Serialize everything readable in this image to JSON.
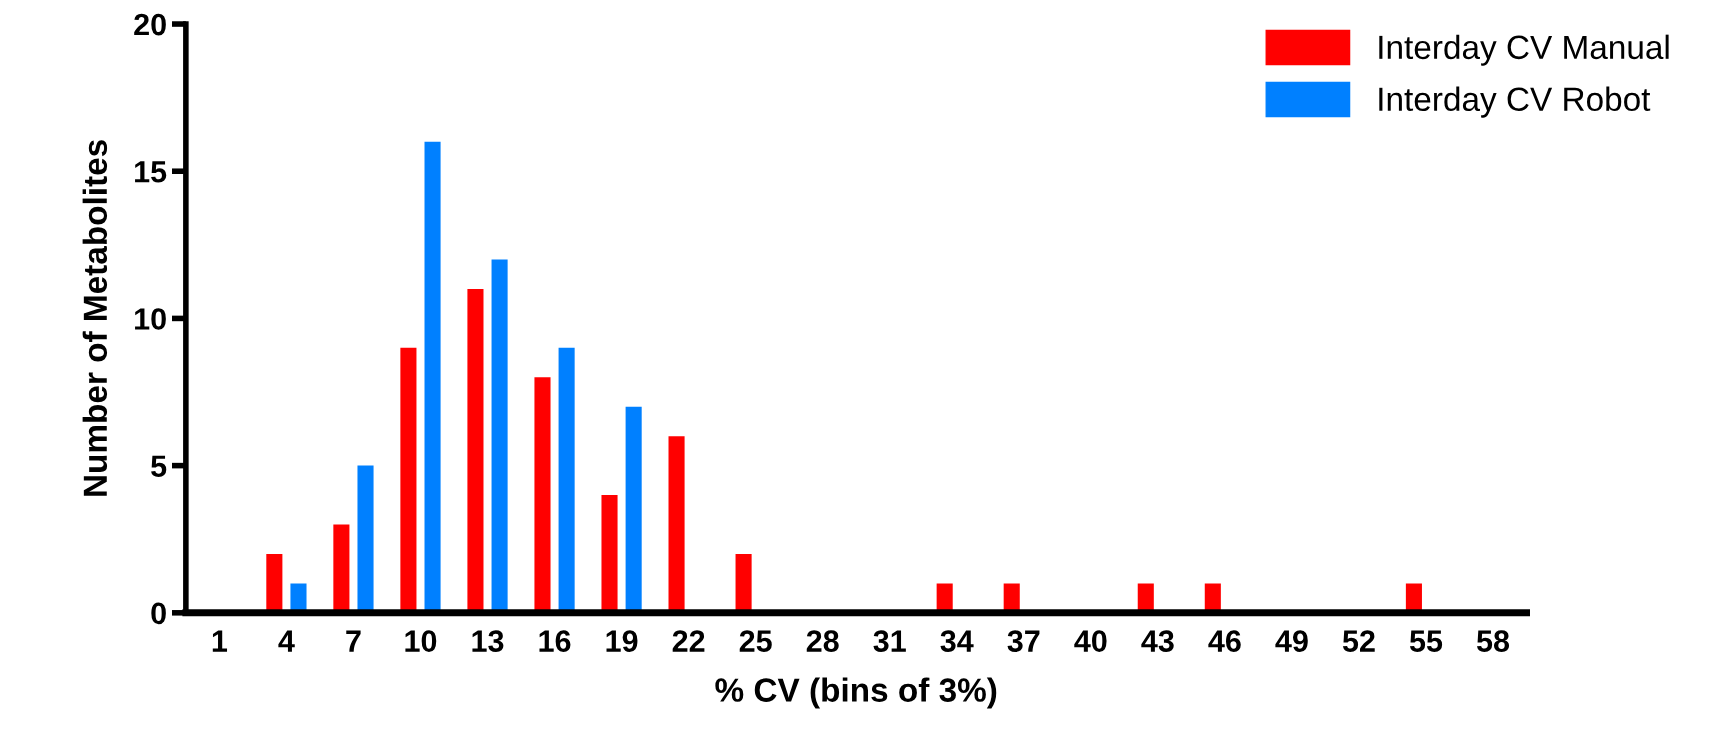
{
  "chart_data": {
    "type": "bar",
    "xlabel": "% CV (bins of 3%)",
    "ylabel": "Number of Metabolites",
    "categories": [
      "1",
      "4",
      "7",
      "10",
      "13",
      "16",
      "19",
      "22",
      "25",
      "28",
      "31",
      "34",
      "37",
      "40",
      "43",
      "46",
      "49",
      "52",
      "55",
      "58"
    ],
    "series": [
      {
        "name": "Interday CV Manual",
        "color": "#ff0000",
        "values": [
          0,
          2,
          3,
          9,
          11,
          8,
          4,
          6,
          2,
          0,
          0,
          1,
          1,
          0,
          1,
          1,
          0,
          0,
          1,
          0
        ]
      },
      {
        "name": "Interday CV Robot",
        "color": "#0080ff",
        "values": [
          0,
          1,
          5,
          16,
          12,
          9,
          7,
          0,
          0,
          0,
          0,
          0,
          0,
          0,
          0,
          0,
          0,
          0,
          0,
          0
        ]
      }
    ],
    "ylim": [
      0,
      20
    ],
    "yticks": [
      0,
      5,
      10,
      15,
      20
    ],
    "grid": false,
    "legend": "top right"
  }
}
